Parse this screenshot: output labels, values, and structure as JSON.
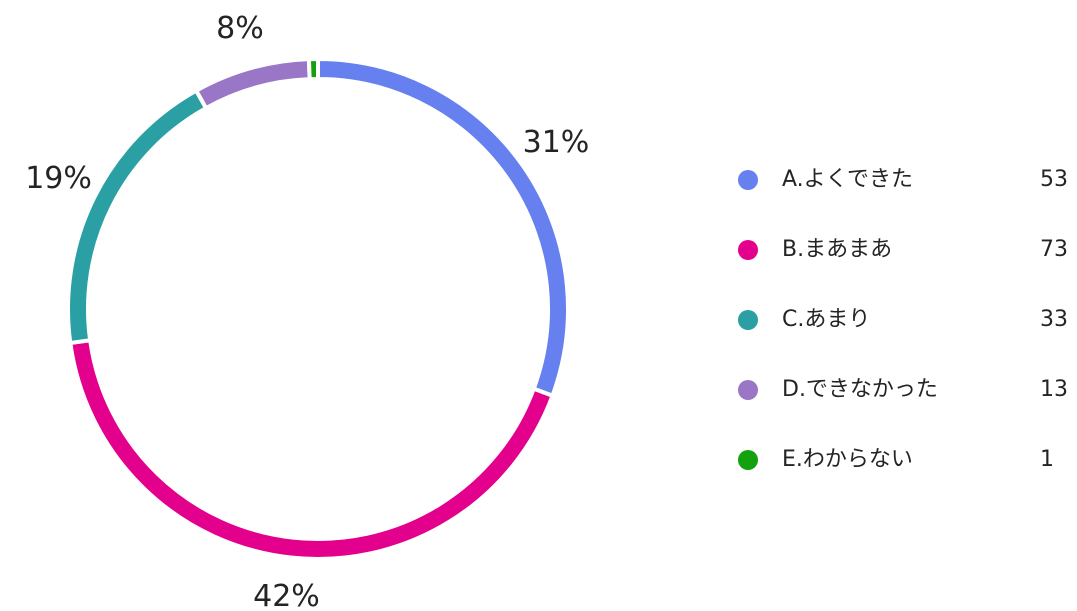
{
  "chart_data": {
    "type": "pie",
    "donut": true,
    "categories": [
      "A.よくできた",
      "B.まあまあ",
      "C.あまり",
      "D.できなかった",
      "E.わからない"
    ],
    "values": [
      53,
      73,
      33,
      13,
      1
    ],
    "value_labels": [
      "31%",
      "42%",
      "19%",
      "8%",
      null
    ],
    "colors": [
      "#6680f0",
      "#e3008c",
      "#2aa0a4",
      "#9a77c6",
      "#13a10e"
    ],
    "legend": "right"
  }
}
